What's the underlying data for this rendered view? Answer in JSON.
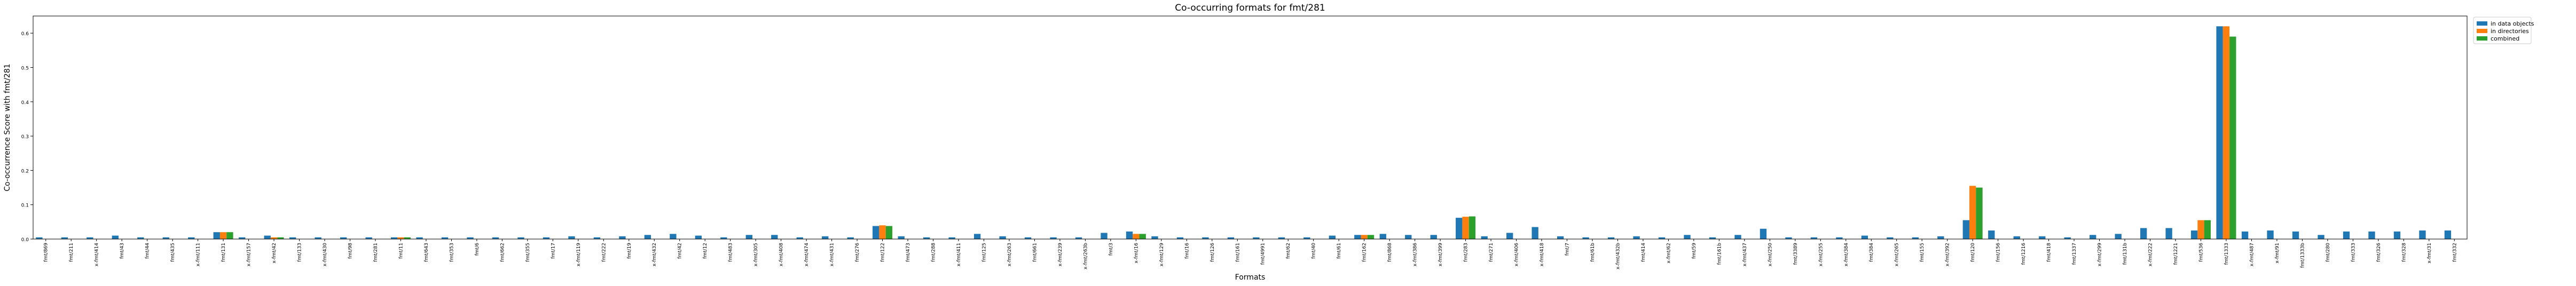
{
  "chart_data": {
    "type": "bar",
    "title": "Co-occurring formats for fmt/281",
    "xlabel": "Formats",
    "ylabel": "Co-occurrence Score with fmt/281",
    "ylim": [
      0,
      0.65
    ],
    "yticks": [
      0.0,
      0.1,
      0.2,
      0.3,
      0.4,
      0.5,
      0.6
    ],
    "grid": false,
    "legend_position": "top-right outside",
    "colors": [
      "#1f77b4",
      "#ff7f0e",
      "#2ca02c"
    ],
    "categories": [
      "fmt/869",
      "fmt/211",
      "x-fmt/414",
      "fmt/43",
      "fmt/44",
      "fmt/435",
      "x-fmt/111",
      "fmt/131",
      "x-fmt/157",
      "x-fmt/42",
      "fmt/133",
      "x-fmt/430",
      "fmt/98",
      "fmt/281",
      "fmt/11",
      "fmt/643",
      "fmt/353",
      "fmt/6",
      "fmt/662",
      "fmt/355",
      "fmt/17",
      "x-fmt/119",
      "fmt/222",
      "fmt/19",
      "x-fmt/432",
      "fmt/42",
      "fmt/12",
      "fmt/483",
      "x-fmt/305",
      "x-fmt/408",
      "x-fmt/474",
      "x-fmt/431",
      "fmt/276",
      "fmt/122",
      "fmt/473",
      "fmt/288",
      "x-fmt/411",
      "fmt/125",
      "x-fmt/263",
      "fmt/661",
      "x-fmt/239",
      "x-fmt/263b",
      "fmt/3",
      "x-fmt/16",
      "x-fmt/129",
      "fmt/16",
      "fmt/126",
      "fmt/161",
      "fmt/4991",
      "fmt/62",
      "fmt/40",
      "fmt/61",
      "fmt/162",
      "fmt/868",
      "x-fmt/386",
      "x-fmt/399",
      "fmt/283",
      "fmt/271",
      "x-fmt/406",
      "x-fmt/418",
      "fmt/7",
      "fmt/61b",
      "x-fmt/432b",
      "fmt/414",
      "x-fmt/62",
      "fmt/59",
      "fmt/161b",
      "x-fmt/437",
      "x-fmt/250",
      "fmt/3389",
      "x-fmt/255",
      "x-fmt/384",
      "fmt/384",
      "x-fmt/265",
      "fmt/155",
      "x-fmt/392",
      "fmt/120",
      "fmt/156",
      "fmt/1216",
      "fmt/418",
      "fmt/1337",
      "x-fmt/299",
      "fmt/131b",
      "x-fmt/222",
      "fmt/1221",
      "fmt/536",
      "fmt/1333",
      "x-fmt/487",
      "x-fmt/91",
      "fmt/1333b",
      "fmt/280",
      "fmt/333",
      "fmt/326",
      "fmt/328",
      "x-fmt/31",
      "fmt/332"
    ],
    "series": [
      {
        "name": "in data objects",
        "values": [
          0.005,
          0.005,
          0.005,
          0.01,
          0.005,
          0.005,
          0.005,
          0.02,
          0.005,
          0.01,
          0.005,
          0.005,
          0.005,
          0.005,
          0.005,
          0.005,
          0.005,
          0.005,
          0.005,
          0.005,
          0.005,
          0.008,
          0.005,
          0.008,
          0.012,
          0.015,
          0.01,
          0.005,
          0.012,
          0.012,
          0.005,
          0.008,
          0.005,
          0.038,
          0.008,
          0.005,
          0.005,
          0.015,
          0.008,
          0.005,
          0.005,
          0.005,
          0.018,
          0.022,
          0.008,
          0.005,
          0.005,
          0.005,
          0.005,
          0.005,
          0.005,
          0.01,
          0.012,
          0.015,
          0.012,
          0.012,
          0.062,
          0.008,
          0.018,
          0.035,
          0.008,
          0.005,
          0.005,
          0.008,
          0.005,
          0.012,
          0.005,
          0.012,
          0.03,
          0.005,
          0.005,
          0.005,
          0.01,
          0.005,
          0.005,
          0.008,
          0.055,
          0.025,
          0.008,
          0.008,
          0.005,
          0.012,
          0.015,
          0.032,
          0.032,
          0.025,
          0.62,
          0.022,
          0.025,
          0.022,
          0.012,
          0.022,
          0.022,
          0.022,
          0.025,
          0.025
        ]
      },
      {
        "name": "in directories",
        "values": [
          0,
          0,
          0,
          0,
          0,
          0,
          0,
          0.02,
          0,
          0.005,
          0,
          0,
          0,
          0,
          0.005,
          0,
          0,
          0,
          0,
          0,
          0,
          0,
          0,
          0,
          0,
          0,
          0,
          0,
          0,
          0,
          0,
          0,
          0,
          0.04,
          0,
          0,
          0,
          0,
          0,
          0,
          0,
          0,
          0,
          0.015,
          0,
          0,
          0,
          0,
          0,
          0,
          0,
          0,
          0.012,
          0,
          0,
          0,
          0.065,
          0,
          0,
          0,
          0,
          0,
          0,
          0,
          0,
          0,
          0,
          0,
          0,
          0,
          0,
          0,
          0,
          0,
          0,
          0,
          0.155,
          0,
          0,
          0,
          0,
          0,
          0,
          0,
          0,
          0.055,
          0.62,
          0,
          0,
          0,
          0,
          0,
          0,
          0,
          0,
          0
        ]
      },
      {
        "name": "combined",
        "values": [
          0,
          0,
          0,
          0,
          0,
          0,
          0,
          0.02,
          0,
          0.005,
          0,
          0,
          0,
          0,
          0.005,
          0,
          0,
          0,
          0,
          0,
          0,
          0,
          0,
          0,
          0,
          0,
          0,
          0,
          0,
          0,
          0,
          0,
          0,
          0.038,
          0,
          0,
          0,
          0,
          0,
          0,
          0,
          0,
          0,
          0.015,
          0,
          0,
          0,
          0,
          0,
          0,
          0,
          0,
          0.012,
          0,
          0,
          0,
          0.066,
          0,
          0,
          0,
          0,
          0,
          0,
          0,
          0,
          0,
          0,
          0,
          0,
          0,
          0,
          0,
          0,
          0,
          0,
          0,
          0.15,
          0,
          0,
          0,
          0,
          0,
          0,
          0,
          0,
          0.055,
          0.59,
          0,
          0,
          0,
          0,
          0,
          0,
          0,
          0,
          0
        ]
      }
    ]
  }
}
